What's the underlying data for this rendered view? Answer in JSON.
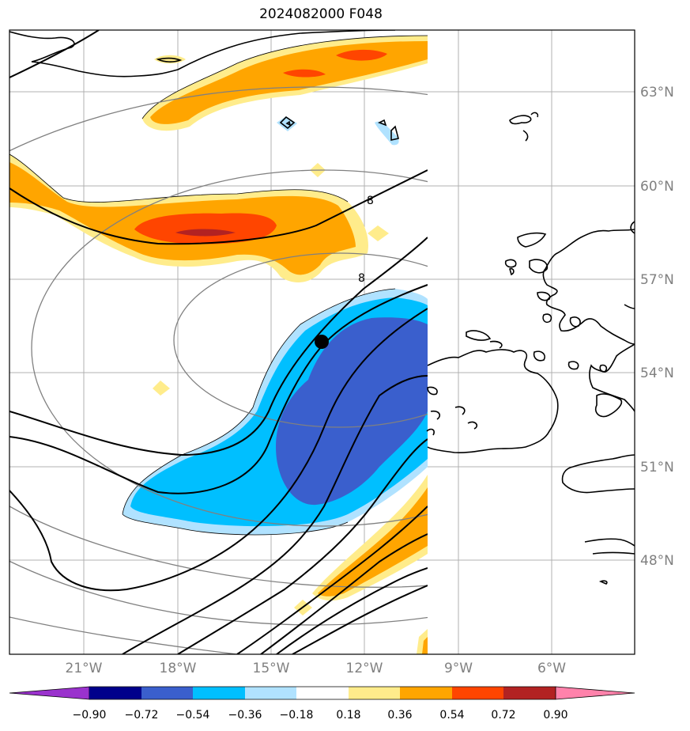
{
  "title": "2024082000 F048",
  "lat_labels": [
    "63°N",
    "60°N",
    "57°N",
    "54°N",
    "51°N",
    "48°N"
  ],
  "lon_labels": [
    "21°W",
    "18°W",
    "15°W",
    "12°W",
    "9°W",
    "6°W"
  ],
  "contour_label": "8",
  "colorbar": {
    "levels": [
      "−0.90",
      "−0.72",
      "−0.54",
      "−0.36",
      "−0.18",
      "0.18",
      "0.36",
      "0.54",
      "0.72",
      "0.90"
    ],
    "colors": [
      "#9a32cd",
      "#00008b",
      "#3a5fcd",
      "#00bfff",
      "#b0e2ff",
      "#ffffff",
      "#ffec8b",
      "#ffa500",
      "#ff4500",
      "#b22222",
      "#ff82ab"
    ]
  },
  "palette": {
    "pos1": "#ffec8b",
    "pos2": "#ffa500",
    "pos3": "#ff4500",
    "pos4": "#b22222",
    "neg1": "#b0e2ff",
    "neg2": "#00bfff",
    "neg3": "#3a5fcd"
  }
}
